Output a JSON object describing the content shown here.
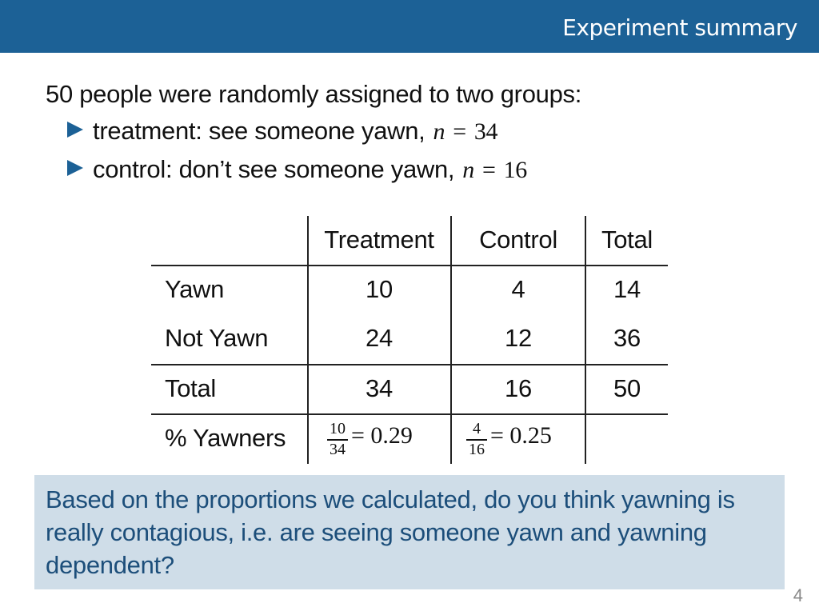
{
  "header": {
    "title": "Experiment summary"
  },
  "intro": {
    "text": "50 people were randomly assigned to two groups:",
    "bullets": [
      {
        "label": "treatment: see someone yawn,",
        "var": "n",
        "eq": "=",
        "value": "34"
      },
      {
        "label": "control: don’t see someone yawn,",
        "var": "n",
        "eq": "=",
        "value": "16"
      }
    ]
  },
  "table": {
    "columns": [
      "Treatment",
      "Control",
      "Total"
    ],
    "rows": [
      {
        "label": "Yawn",
        "values": [
          "10",
          "4",
          "14"
        ]
      },
      {
        "label": "Not Yawn",
        "values": [
          "24",
          "12",
          "36"
        ]
      },
      {
        "label": "Total",
        "values": [
          "34",
          "16",
          "50"
        ]
      }
    ],
    "percent_row": {
      "label": "% Yawners",
      "treatment": {
        "num": "10",
        "den": "34",
        "result": "= 0.29"
      },
      "control": {
        "num": "4",
        "den": "16",
        "result": "= 0.25"
      }
    }
  },
  "question": {
    "text": "Based on the proportions we calculated, do you think yawning is really contagious, i.e. are seeing someone yawn and yawning dependent?"
  },
  "page_number": "4",
  "colors": {
    "header_bg": "#1c6196",
    "question_bg": "#cfdde8",
    "question_text": "#1c4e7a"
  }
}
